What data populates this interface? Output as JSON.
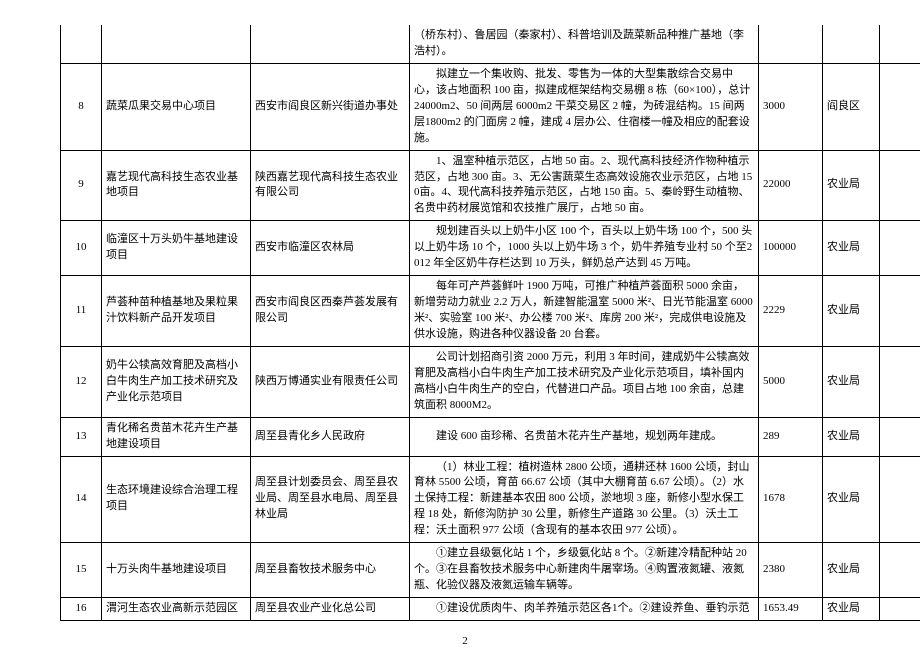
{
  "page_number": "2",
  "row_continuation": {
    "desc": "（桥东村）、鲁居园（秦家村）、科普培训及蔬菜新品种推广基地（李浩村）。"
  },
  "rows": [
    {
      "idx": "8",
      "proj": "蔬菜瓜果交易中心项目",
      "org": "西安市阎良区新兴街道办事处",
      "desc": "拟建立一个集收购、批发、零售为一体的大型集散综合交易中心，该占地面积 100 亩，拟建成框架结构交易棚 8 栋（60×100），总计24000m2、50 间两层 6000m2 干菜交易区 2 幢，为砖混结构。15 间两层1800m2 的门面房 2 幢，建成 4 层办公、住宿楼一幢及相应的配套设施。",
      "num": "3000",
      "dept": "阎良区",
      "last": ""
    },
    {
      "idx": "9",
      "proj": "嘉艺现代高科技生态农业基地项目",
      "org": "陕西嘉艺现代高科技生态农业有限公司",
      "desc": "1、温室种植示范区，占地 50 亩。2、现代高科技经济作物种植示范区，占地 300 亩。3、无公害蔬菜生态高效设施农业示范区，占地 150亩。4、现代高科技养殖示范区，占地 150 亩。5、秦岭野生动植物、名贵中药材展览馆和农技推广展厅，占地 50 亩。",
      "num": "22000",
      "dept": "农业局",
      "last": ""
    },
    {
      "idx": "10",
      "proj": "临潼区十万头奶牛基地建设项目",
      "org": "西安市临潼区农林局",
      "desc": "规划建百头以上奶牛小区 100 个，百头以上奶牛场 100 个，500 头以上奶牛场 10 个，1000 头以上奶牛场 3 个，奶牛养殖专业村 50 个至2012 年全区奶牛存栏达到 10 万头，鲜奶总产达到 45 万吨。",
      "num": "100000",
      "dept": "农业局",
      "last": ""
    },
    {
      "idx": "11",
      "proj": "芦荟种苗种植基地及果粒果汁饮料新产品开发项目",
      "org": "西安市阎良区西秦芦荟发展有限公司",
      "desc": "每年可产芦荟鲜叶 1900 万吨，可推广种植芦荟面积 5000 余亩，新增劳动力就业 2.2 万人，新建智能温室 5000 米²、日光节能温室 6000米²、实验室 100 米²、办公楼 700 米²、库房 200 米²，完成供电设施及供水设施，购进各种仪器设备 20 台套。",
      "num": "2229",
      "dept": "农业局",
      "last": ""
    },
    {
      "idx": "12",
      "proj": "奶牛公犊高效育肥及高档小白牛肉生产加工技术研究及产业化示范项目",
      "org": "陕西万博通实业有限责任公司",
      "desc": "公司计划招商引资 2000 万元，利用 3 年时间，建成奶牛公犊高效育肥及高档小白牛肉生产加工技术研究及产业化示范项目，填补国内高档小白牛肉生产的空白，代替进口产品。项目占地 100 余亩，总建筑面积 8000M2。",
      "num": "5000",
      "dept": "农业局",
      "last": ""
    },
    {
      "idx": "13",
      "proj": "青化稀名贵苗木花卉生产基地建设项目",
      "org": "周至县青化乡人民政府",
      "desc": "建设 600 亩珍稀、名贵苗木花卉生产基地，规划两年建成。",
      "num": "289",
      "dept": "农业局",
      "last": ""
    },
    {
      "idx": "14",
      "proj": "生态环境建设综合治理工程项目",
      "org": "周至县计划委员会、周至县农业局、周至县水电局、周至县林业局",
      "desc": "（1）林业工程：植树造林 2800 公顷，通耕还林 1600 公顷，封山育林 5500 公顷，育苗 66.67 公顷（其中大棚育苗 6.67 公顷）。（2）水土保持工程：新建基本农田 800 公顷，淤地坝 3 座，新修小型水保工程 18 处，新修沟防护 30 公里，新修生产道路 30 公里。（3）沃土工程：沃土面积 977 公顷（含现有的基本农田 977 公顷）。",
      "num": "1678",
      "dept": "农业局",
      "last": ""
    },
    {
      "idx": "15",
      "proj": "十万头肉牛基地建设项目",
      "org": "周至县畜牧技术服务中心",
      "desc": "①建立县级氨化站 1 个，乡级氨化站 8 个。②新建冷精配种站 20个。③在县畜牧技术服务中心新建肉牛屠宰场。④购置液氮罐、液氮瓶、化验仪器及液氮运输车辆等。",
      "num": "2380",
      "dept": "农业局",
      "last": ""
    },
    {
      "idx": "16",
      "proj": "渭河生态农业高新示范园区",
      "org": "周至县农业产业化总公司",
      "desc": "①建设优质肉牛、肉羊养殖示范区各1个。②建设养鱼、垂钓示范",
      "num": "1653.49",
      "dept": "农业局",
      "last": ""
    }
  ]
}
